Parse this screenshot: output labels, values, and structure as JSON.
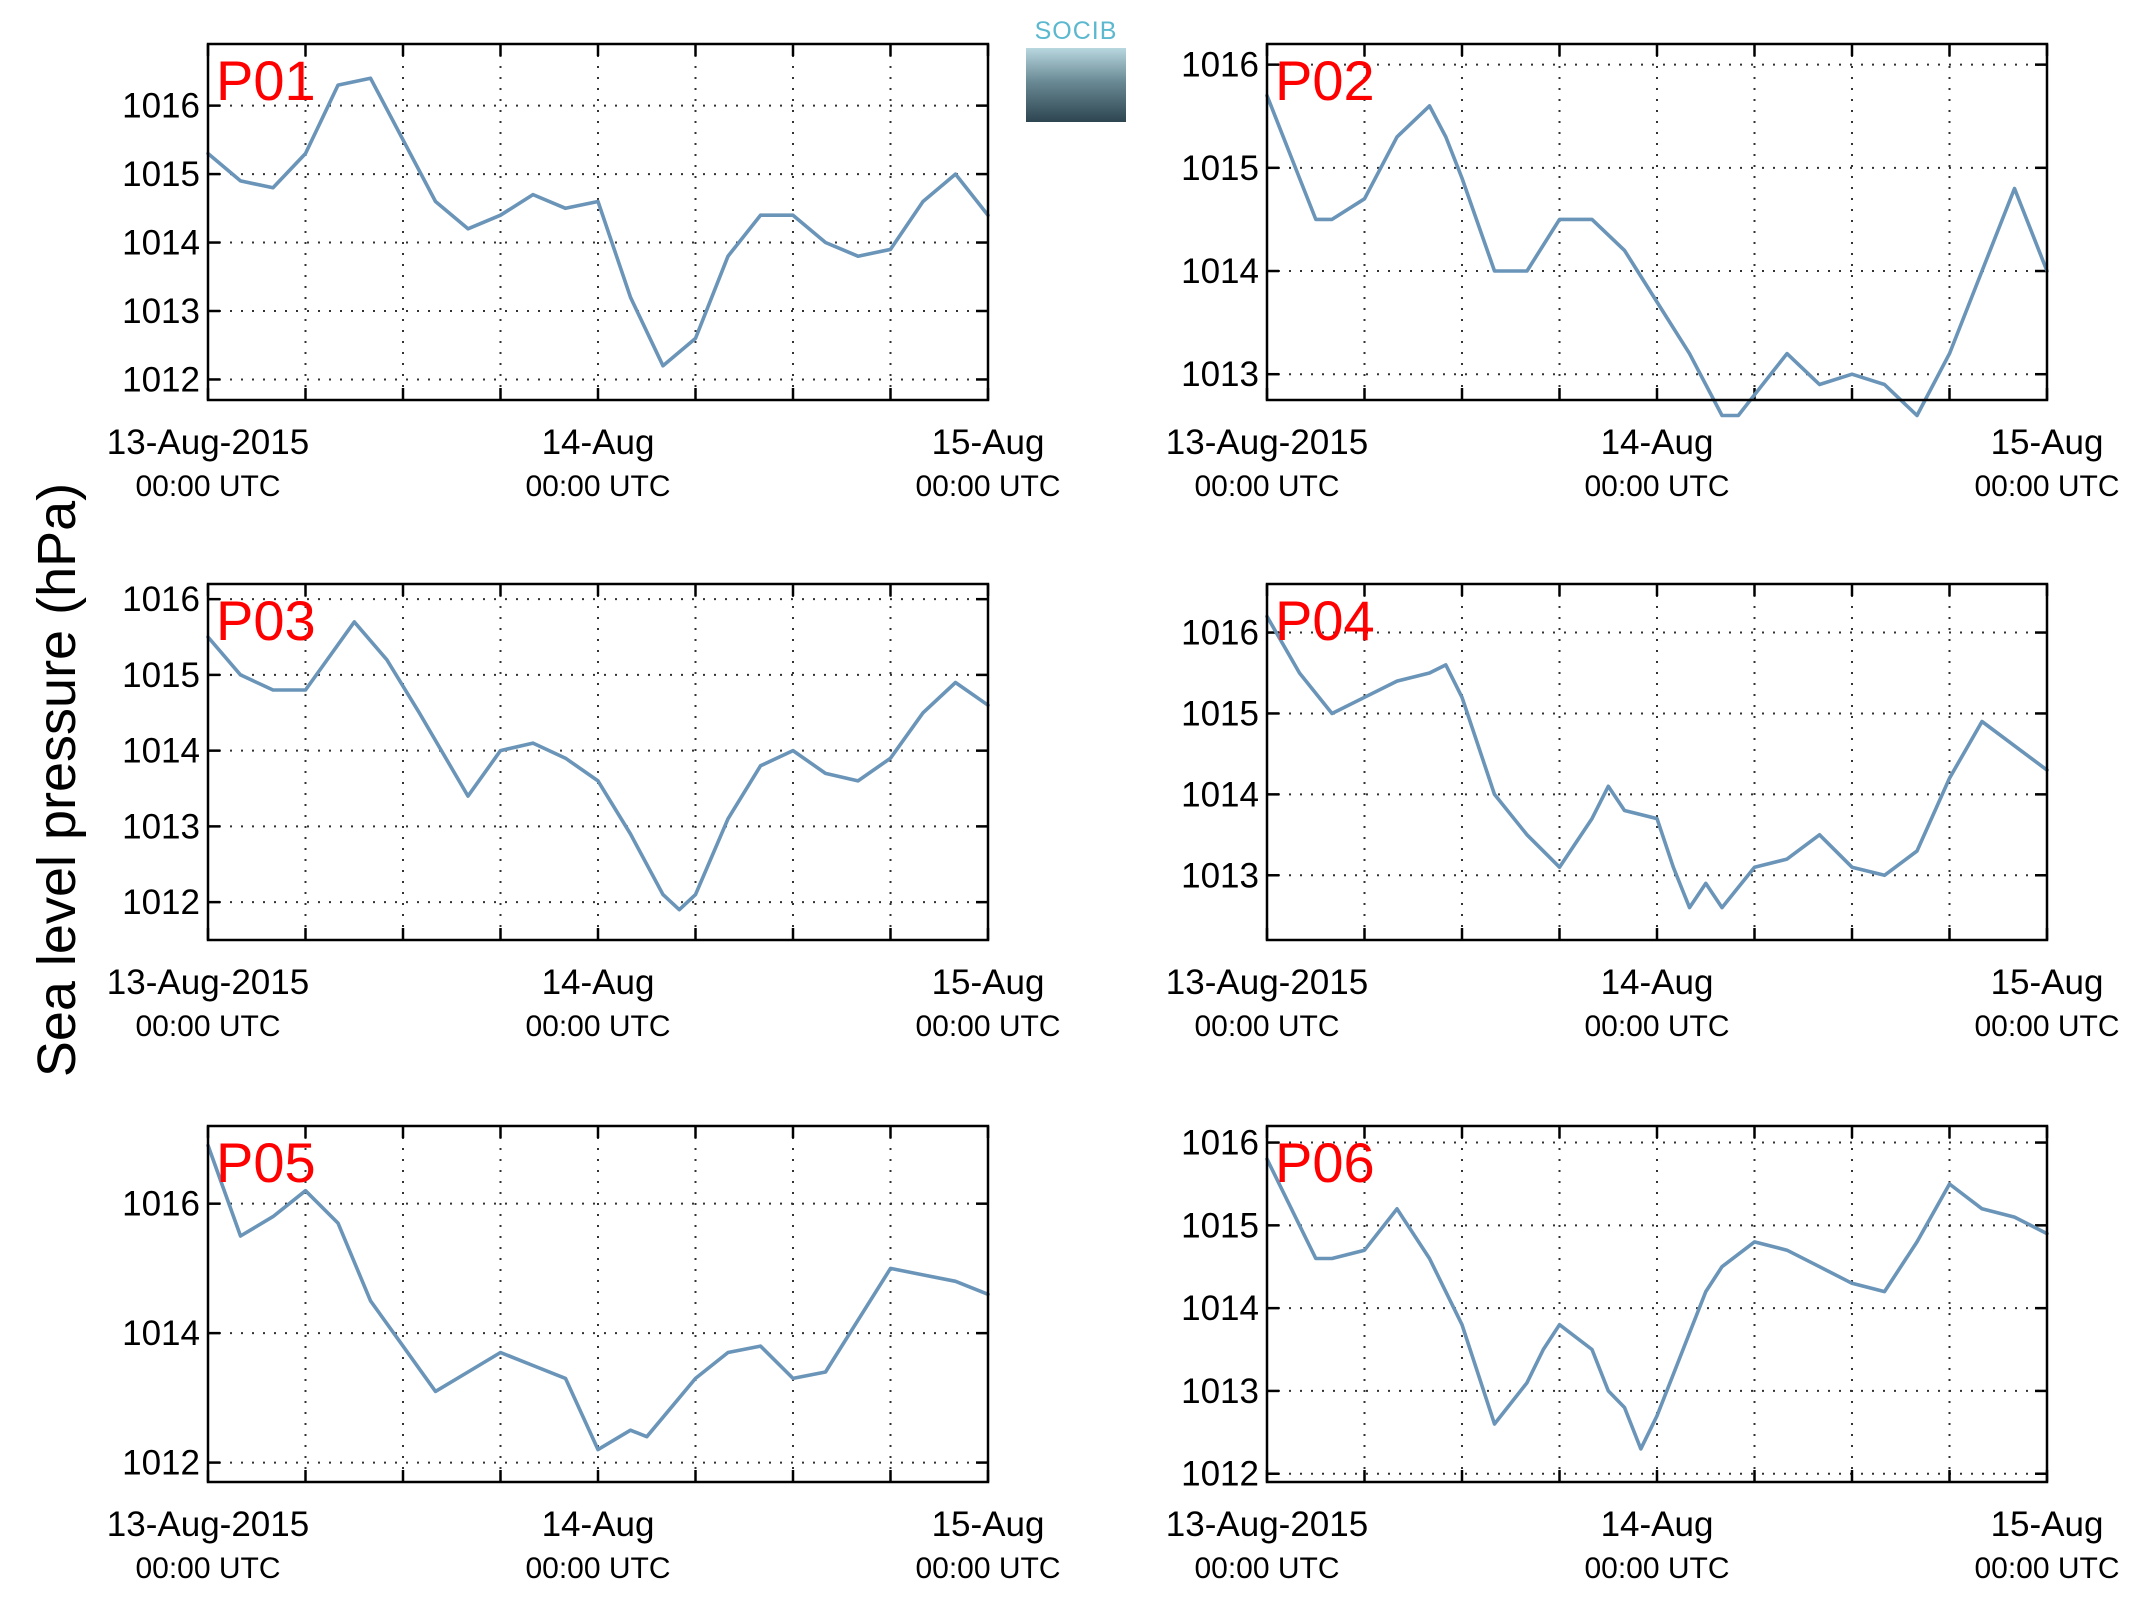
{
  "figure": {
    "ylabel": "Sea level pressure (hPa)",
    "logo_text": "SOCIB",
    "line_color": "#6a95b8",
    "label_color": "#ff0000"
  },
  "chart_data": [
    {
      "type": "line",
      "id": "P01",
      "label": "P01",
      "ylim": [
        1011.7,
        1016.9
      ],
      "yticks": [
        "1012",
        "1013",
        "1014",
        "1015",
        "1016"
      ],
      "xlim": [
        "2015-08-13 00:00",
        "2015-08-15 00:00"
      ],
      "xtick_labels": [
        {
          "date": "13-Aug-2015",
          "time": "00:00 UTC"
        },
        {
          "date": "14-Aug",
          "time": "00:00 UTC"
        },
        {
          "date": "15-Aug",
          "time": "00:00 UTC"
        }
      ],
      "grid": true,
      "x_hours": [
        0,
        2,
        4,
        6,
        7,
        8,
        10,
        12,
        14,
        16,
        18,
        20,
        22,
        24,
        26,
        28,
        30,
        32,
        34,
        36,
        38,
        40,
        42,
        44,
        46,
        48
      ],
      "values": [
        1015.3,
        1014.9,
        1014.8,
        1015.3,
        1015.8,
        1016.3,
        1016.4,
        1015.5,
        1014.6,
        1014.2,
        1014.4,
        1014.7,
        1014.5,
        1014.6,
        1013.2,
        1012.2,
        1012.6,
        1013.8,
        1014.4,
        1014.4,
        1014.0,
        1013.8,
        1013.9,
        1014.6,
        1015.0,
        1014.4
      ]
    },
    {
      "type": "line",
      "id": "P02",
      "label": "P02",
      "ylim": [
        1012.75,
        1016.2
      ],
      "yticks": [
        "1013",
        "1014",
        "1015",
        "1016"
      ],
      "xlim": [
        "2015-08-13 00:00",
        "2015-08-15 00:00"
      ],
      "xtick_labels": [
        {
          "date": "13-Aug-2015",
          "time": "00:00 UTC"
        },
        {
          "date": "14-Aug",
          "time": "00:00 UTC"
        },
        {
          "date": "15-Aug",
          "time": "00:00 UTC"
        }
      ],
      "grid": true,
      "x_hours": [
        0,
        2,
        3,
        4,
        6,
        8,
        10,
        11,
        12,
        14,
        16,
        18,
        20,
        22,
        24,
        26,
        28,
        29,
        30,
        32,
        34,
        36,
        38,
        40,
        42,
        44,
        46,
        48
      ],
      "values": [
        1015.7,
        1014.9,
        1014.5,
        1014.5,
        1014.7,
        1015.3,
        1015.6,
        1015.3,
        1014.9,
        1014.0,
        1014.0,
        1014.5,
        1014.5,
        1014.2,
        1013.7,
        1013.2,
        1012.6,
        1012.6,
        1012.8,
        1013.2,
        1012.9,
        1013.0,
        1012.9,
        1012.6,
        1013.2,
        1014.0,
        1014.8,
        1014.0
      ]
    },
    {
      "type": "line",
      "id": "P03",
      "label": "P03",
      "ylim": [
        1011.5,
        1016.2
      ],
      "yticks": [
        "1012",
        "1013",
        "1014",
        "1015",
        "1016"
      ],
      "xlim": [
        "2015-08-13 00:00",
        "2015-08-15 00:00"
      ],
      "xtick_labels": [
        {
          "date": "13-Aug-2015",
          "time": "00:00 UTC"
        },
        {
          "date": "14-Aug",
          "time": "00:00 UTC"
        },
        {
          "date": "15-Aug",
          "time": "00:00 UTC"
        }
      ],
      "grid": true,
      "x_hours": [
        0,
        2,
        4,
        6,
        9,
        11,
        13,
        16,
        18,
        20,
        22,
        24,
        26,
        28,
        29,
        30,
        32,
        34,
        36,
        38,
        40,
        42,
        44,
        46,
        48
      ],
      "values": [
        1015.5,
        1015.0,
        1014.8,
        1014.8,
        1015.7,
        1015.2,
        1014.5,
        1013.4,
        1014.0,
        1014.1,
        1013.9,
        1013.6,
        1012.9,
        1012.1,
        1011.9,
        1012.1,
        1013.1,
        1013.8,
        1014.0,
        1013.7,
        1013.6,
        1013.9,
        1014.5,
        1014.9,
        1014.6
      ]
    },
    {
      "type": "line",
      "id": "P04",
      "label": "P04",
      "ylim": [
        1012.2,
        1016.6
      ],
      "yticks": [
        "1013",
        "1014",
        "1015",
        "1016"
      ],
      "xlim": [
        "2015-08-13 00:00",
        "2015-08-15 00:00"
      ],
      "xtick_labels": [
        {
          "date": "13-Aug-2015",
          "time": "00:00 UTC"
        },
        {
          "date": "14-Aug",
          "time": "00:00 UTC"
        },
        {
          "date": "15-Aug",
          "time": "00:00 UTC"
        }
      ],
      "grid": true,
      "x_hours": [
        0,
        2,
        4,
        6,
        8,
        10,
        11,
        12,
        14,
        16,
        18,
        20,
        21,
        22,
        24,
        25,
        26,
        27,
        28,
        30,
        32,
        34,
        36,
        38,
        40,
        42,
        44,
        46,
        48
      ],
      "values": [
        1016.2,
        1015.5,
        1015.0,
        1015.2,
        1015.4,
        1015.5,
        1015.6,
        1015.2,
        1014.0,
        1013.5,
        1013.1,
        1013.7,
        1014.1,
        1013.8,
        1013.7,
        1013.1,
        1012.6,
        1012.9,
        1012.6,
        1013.1,
        1013.2,
        1013.5,
        1013.1,
        1013.0,
        1013.3,
        1014.2,
        1014.9,
        1014.6,
        1014.3
      ]
    },
    {
      "type": "line",
      "id": "P05",
      "label": "P05",
      "ylim": [
        1011.7,
        1017.2
      ],
      "yticks": [
        "1012",
        "1014",
        "1016"
      ],
      "xlim": [
        "2015-08-13 00:00",
        "2015-08-15 00:00"
      ],
      "xtick_labels": [
        {
          "date": "13-Aug-2015",
          "time": "00:00 UTC"
        },
        {
          "date": "14-Aug",
          "time": "00:00 UTC"
        },
        {
          "date": "15-Aug",
          "time": "00:00 UTC"
        }
      ],
      "grid": true,
      "x_hours": [
        0,
        2,
        4,
        6,
        8,
        10,
        12,
        14,
        16,
        18,
        20,
        22,
        24,
        26,
        27,
        28,
        30,
        32,
        34,
        36,
        38,
        40,
        42,
        44,
        46,
        48
      ],
      "values": [
        1016.9,
        1015.5,
        1015.8,
        1016.2,
        1015.7,
        1014.5,
        1013.8,
        1013.1,
        1013.4,
        1013.7,
        1013.5,
        1013.3,
        1012.2,
        1012.5,
        1012.4,
        1012.7,
        1013.3,
        1013.7,
        1013.8,
        1013.3,
        1013.4,
        1014.2,
        1015.0,
        1014.9,
        1014.8,
        1014.6
      ]
    },
    {
      "type": "line",
      "id": "P06",
      "label": "P06",
      "ylim": [
        1011.9,
        1016.2
      ],
      "yticks": [
        "1012",
        "1013",
        "1014",
        "1015",
        "1016"
      ],
      "xlim": [
        "2015-08-13 00:00",
        "2015-08-15 00:00"
      ],
      "xtick_labels": [
        {
          "date": "13-Aug-2015",
          "time": "00:00 UTC"
        },
        {
          "date": "14-Aug",
          "time": "00:00 UTC"
        },
        {
          "date": "15-Aug",
          "time": "00:00 UTC"
        }
      ],
      "grid": true,
      "x_hours": [
        0,
        2,
        3,
        4,
        6,
        8,
        10,
        12,
        14,
        16,
        17,
        18,
        20,
        21,
        22,
        23,
        24,
        25,
        26,
        27,
        28,
        30,
        32,
        34,
        36,
        38,
        40,
        42,
        44,
        46,
        48
      ],
      "values": [
        1015.8,
        1015.0,
        1014.6,
        1014.6,
        1014.7,
        1015.2,
        1014.6,
        1013.8,
        1012.6,
        1013.1,
        1013.5,
        1013.8,
        1013.5,
        1013.0,
        1012.8,
        1012.3,
        1012.7,
        1013.2,
        1013.7,
        1014.2,
        1014.5,
        1014.8,
        1014.7,
        1014.5,
        1014.3,
        1014.2,
        1014.8,
        1015.5,
        1015.2,
        1015.1,
        1014.9
      ]
    }
  ]
}
